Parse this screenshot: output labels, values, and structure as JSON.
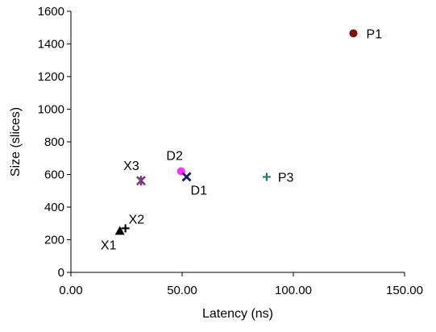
{
  "chart_data": {
    "type": "scatter",
    "title": "",
    "xlabel": "Latency (ns)",
    "ylabel": "Size (slices)",
    "xlim": [
      0,
      150
    ],
    "ylim": [
      0,
      1600
    ],
    "x_ticks": [
      "0.00",
      "50.00",
      "100.00",
      "150.00"
    ],
    "y_ticks": [
      "0",
      "200",
      "400",
      "600",
      "800",
      "1000",
      "1200",
      "1400",
      "1600"
    ],
    "grid": false,
    "legend": "none",
    "points": [
      {
        "label": "P1",
        "x": 127,
        "y": 1465,
        "marker": "circle",
        "color": "#7b1010"
      },
      {
        "label": "P3",
        "x": 88,
        "y": 585,
        "marker": "plus",
        "color": "#1f7a7a"
      },
      {
        "label": "D2",
        "x": 49.5,
        "y": 620,
        "marker": "circle",
        "color": "#ff33ff"
      },
      {
        "label": "D1",
        "x": 52,
        "y": 585,
        "marker": "x",
        "color": "#1a1a6e"
      },
      {
        "label": "X3",
        "x": 31.5,
        "y": 562,
        "marker": "star",
        "color": "#7a3a7a"
      },
      {
        "label": "X2",
        "x": 24.5,
        "y": 270,
        "marker": "plus",
        "color": "#000000"
      },
      {
        "label": "X1",
        "x": 22,
        "y": 255,
        "marker": "triangle",
        "color": "#000000"
      }
    ]
  }
}
